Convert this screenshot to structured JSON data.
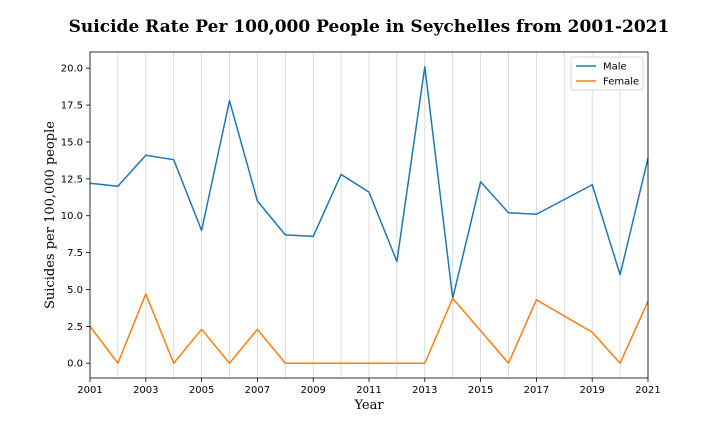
{
  "chart_data": {
    "type": "line",
    "title": "Suicide Rate Per 100,000 People in Seychelles from 2001-2021",
    "xlabel": "Year",
    "ylabel": "Suicides per 100,000 people",
    "x": [
      2001,
      2002,
      2003,
      2004,
      2005,
      2006,
      2007,
      2008,
      2009,
      2010,
      2011,
      2012,
      2013,
      2014,
      2015,
      2016,
      2017,
      2019,
      2020,
      2021
    ],
    "xlim": [
      2001,
      2021
    ],
    "ylim": [
      -1.0,
      21.1
    ],
    "xticks": [
      "2001",
      "2003",
      "2005",
      "2007",
      "2009",
      "2011",
      "2013",
      "2015",
      "2017",
      "2019",
      "2021"
    ],
    "yticks": [
      "0.0",
      "2.5",
      "5.0",
      "7.5",
      "10.0",
      "12.5",
      "15.0",
      "17.5",
      "20.0"
    ],
    "vertical_grid": true,
    "legend_position": "top-right",
    "series": [
      {
        "name": "Male",
        "color": "#1f77b4",
        "values": [
          12.2,
          12.0,
          14.1,
          13.8,
          9.0,
          17.8,
          11.0,
          8.7,
          8.6,
          12.8,
          11.6,
          6.9,
          20.1,
          4.4,
          12.3,
          10.2,
          10.1,
          12.1,
          6.0,
          13.9
        ]
      },
      {
        "name": "Female",
        "color": "#ff7f0e",
        "values": [
          2.5,
          0.0,
          4.7,
          0.0,
          2.3,
          0.0,
          2.3,
          0.0,
          0.0,
          0.0,
          0.0,
          0.0,
          0.0,
          4.4,
          2.2,
          0.0,
          4.3,
          2.1,
          0.0,
          4.2
        ]
      }
    ]
  }
}
